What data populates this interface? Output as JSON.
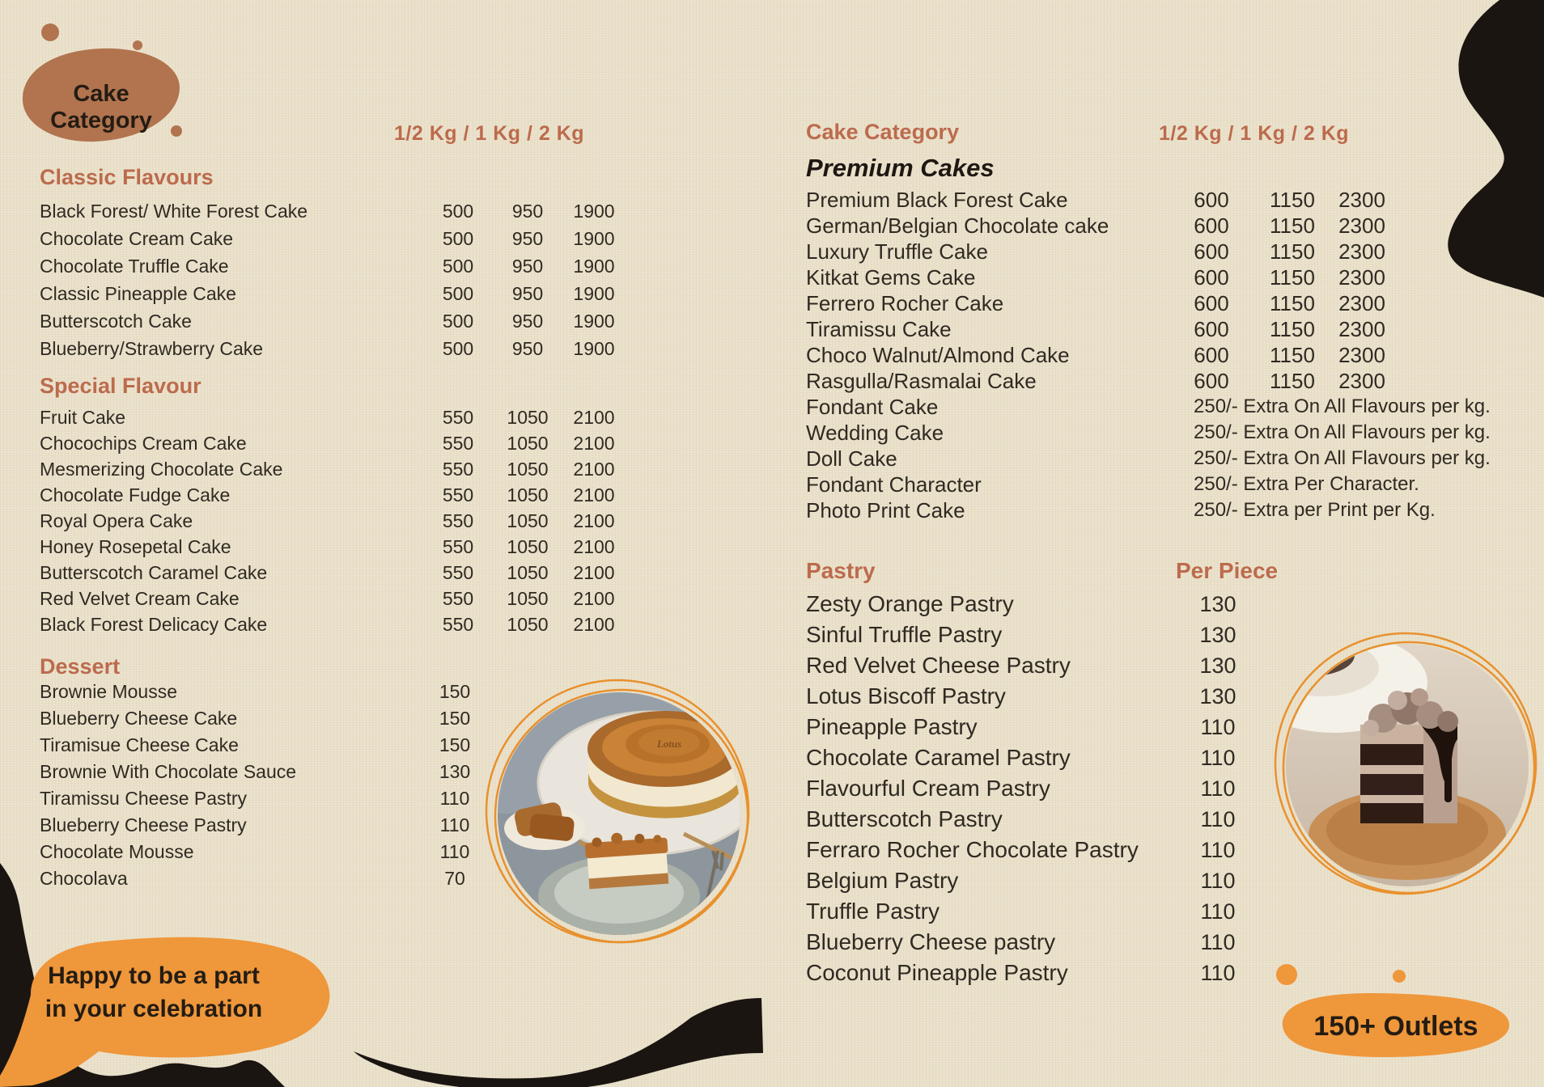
{
  "badge": {
    "label": "Cake Category"
  },
  "left_column": {
    "size_header": "1/2 Kg / 1 Kg / 2 Kg",
    "sections": [
      {
        "title": "Classic Flavours",
        "items": [
          {
            "name": "Black Forest/ White Forest Cake",
            "p1": "500",
            "p2": "950",
            "p3": "1900"
          },
          {
            "name": "Chocolate Cream Cake",
            "p1": "500",
            "p2": "950",
            "p3": "1900"
          },
          {
            "name": "Chocolate Truffle Cake",
            "p1": "500",
            "p2": "950",
            "p3": "1900"
          },
          {
            "name": "Classic Pineapple Cake",
            "p1": "500",
            "p2": "950",
            "p3": "1900"
          },
          {
            "name": "Butterscotch Cake",
            "p1": "500",
            "p2": "950",
            "p3": "1900"
          },
          {
            "name": "Blueberry/Strawberry Cake",
            "p1": "500",
            "p2": "950",
            "p3": "1900"
          }
        ]
      },
      {
        "title": "Special Flavour",
        "items": [
          {
            "name": "Fruit Cake",
            "p1": "550",
            "p2": "1050",
            "p3": "2100"
          },
          {
            "name": "Chocochips Cream Cake",
            "p1": "550",
            "p2": "1050",
            "p3": "2100"
          },
          {
            "name": "Mesmerizing Chocolate Cake",
            "p1": "550",
            "p2": "1050",
            "p3": "2100"
          },
          {
            "name": "Chocolate Fudge Cake",
            "p1": "550",
            "p2": "1050",
            "p3": "2100"
          },
          {
            "name": "Royal Opera Cake",
            "p1": "550",
            "p2": "1050",
            "p3": "2100"
          },
          {
            "name": "Honey Rosepetal Cake",
            "p1": "550",
            "p2": "1050",
            "p3": "2100"
          },
          {
            "name": "Butterscotch Caramel Cake",
            "p1": "550",
            "p2": "1050",
            "p3": "2100"
          },
          {
            "name": "Red Velvet Cream Cake",
            "p1": "550",
            "p2": "1050",
            "p3": "2100"
          },
          {
            "name": "Black Forest Delicacy Cake",
            "p1": "550",
            "p2": "1050",
            "p3": "2100"
          }
        ]
      },
      {
        "title": "Dessert",
        "items": [
          {
            "name": "Brownie Mousse",
            "p1": "150"
          },
          {
            "name": "Blueberry Cheese Cake",
            "p1": "150"
          },
          {
            "name": "Tiramisue Cheese Cake",
            "p1": "150"
          },
          {
            "name": "Brownie With Chocolate Sauce",
            "p1": "130"
          },
          {
            "name": "Tiramissu Cheese Pastry",
            "p1": "110"
          },
          {
            "name": "Blueberry Cheese Pastry",
            "p1": "110"
          },
          {
            "name": "Chocolate Mousse",
            "p1": "110"
          },
          {
            "name": "Chocolava",
            "p1": "70"
          }
        ]
      }
    ]
  },
  "right_column": {
    "category_header": "Cake Category",
    "size_header": "1/2 Kg  / 1 Kg  / 2 Kg",
    "premium": {
      "title": "Premium Cakes",
      "items": [
        {
          "name": "Premium Black Forest Cake",
          "p1": "600",
          "p2": "1150",
          "p3": "2300"
        },
        {
          "name": "German/Belgian Chocolate cake",
          "p1": "600",
          "p2": "1150",
          "p3": "2300"
        },
        {
          "name": "Luxury Truffle Cake",
          "p1": "600",
          "p2": "1150",
          "p3": "2300"
        },
        {
          "name": "Kitkat Gems Cake",
          "p1": "600",
          "p2": "1150",
          "p3": "2300"
        },
        {
          "name": "Ferrero Rocher Cake",
          "p1": "600",
          "p2": "1150",
          "p3": "2300"
        },
        {
          "name": "Tiramissu Cake",
          "p1": "600",
          "p2": "1150",
          "p3": "2300"
        },
        {
          "name": "Choco Walnut/Almond Cake",
          "p1": "600",
          "p2": "1150",
          "p3": "2300"
        },
        {
          "name": "Rasgulla/Rasmalai Cake",
          "p1": "600",
          "p2": "1150",
          "p3": "2300"
        },
        {
          "name": "Fondant Cake",
          "note": "250/- Extra On All Flavours per kg."
        },
        {
          "name": "Wedding Cake",
          "note": "250/- Extra On All Flavours per kg."
        },
        {
          "name": "Doll Cake",
          "note": "250/- Extra On All Flavours per kg."
        },
        {
          "name": "Fondant Character",
          "note": "250/- Extra Per Character."
        },
        {
          "name": "Photo Print Cake",
          "note": "250/- Extra per Print per Kg."
        }
      ]
    },
    "pastry": {
      "title": "Pastry",
      "price_header": "Per Piece",
      "items": [
        {
          "name": "Zesty Orange Pastry",
          "p1": "130"
        },
        {
          "name": "Sinful Truffle Pastry",
          "p1": "130"
        },
        {
          "name": "Red Velvet Cheese Pastry",
          "p1": "130"
        },
        {
          "name": "Lotus Biscoff Pastry",
          "p1": "130"
        },
        {
          "name": "Pineapple Pastry",
          "p1": "110"
        },
        {
          "name": "Chocolate Caramel Pastry",
          "p1": "110"
        },
        {
          "name": "Flavourful Cream Pastry",
          "p1": "110"
        },
        {
          "name": "Butterscotch Pastry",
          "p1": "110"
        },
        {
          "name": "Ferraro Rocher Chocolate Pastry",
          "p1": "110"
        },
        {
          "name": "Belgium Pastry",
          "p1": "110"
        },
        {
          "name": "Truffle Pastry",
          "p1": "110"
        },
        {
          "name": "Blueberry Cheese pastry",
          "p1": "110"
        },
        {
          "name": "Coconut Pineapple Pastry",
          "p1": "110"
        }
      ]
    }
  },
  "footer": {
    "tagline_line1": "Happy to be a part",
    "tagline_line2": "in your celebration",
    "outlets_badge": "150+ Outlets"
  },
  "photo_text": {
    "biscuit_brand": "Lotus"
  },
  "colors": {
    "background": "#ece3cd",
    "heading_terracotta": "#bc6b4d",
    "badge_brown": "#b1744f",
    "accent_orange": "#ef973b",
    "ring_orange": "#e8912e",
    "ink_black": "#1a1511",
    "text": "#2f2a22"
  }
}
